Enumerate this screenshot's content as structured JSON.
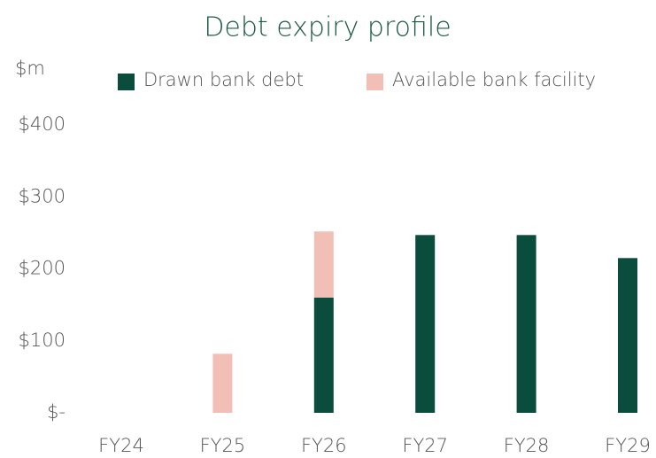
{
  "chart_data": {
    "type": "bar",
    "stacked": true,
    "title": "Debt expiry profile",
    "y_label": "$m",
    "categories": [
      "FY24",
      "FY25",
      "FY26",
      "FY27",
      "FY28",
      "FY29"
    ],
    "series": [
      {
        "name": "Drawn bank debt",
        "color": "#0b4d3c",
        "values": [
          0,
          0,
          160,
          247,
          247,
          215
        ]
      },
      {
        "name": "Available bank facility",
        "color": "#f2bfb7",
        "values": [
          0,
          82,
          92,
          0,
          0,
          0
        ]
      }
    ],
    "ylim": [
      0,
      400
    ],
    "yticks": [
      {
        "value": 0,
        "label": "$-"
      },
      {
        "value": 100,
        "label": "$100"
      },
      {
        "value": 200,
        "label": "$200"
      },
      {
        "value": 300,
        "label": "$300"
      },
      {
        "value": 400,
        "label": "$400"
      }
    ],
    "grid": false,
    "legend": "top"
  }
}
